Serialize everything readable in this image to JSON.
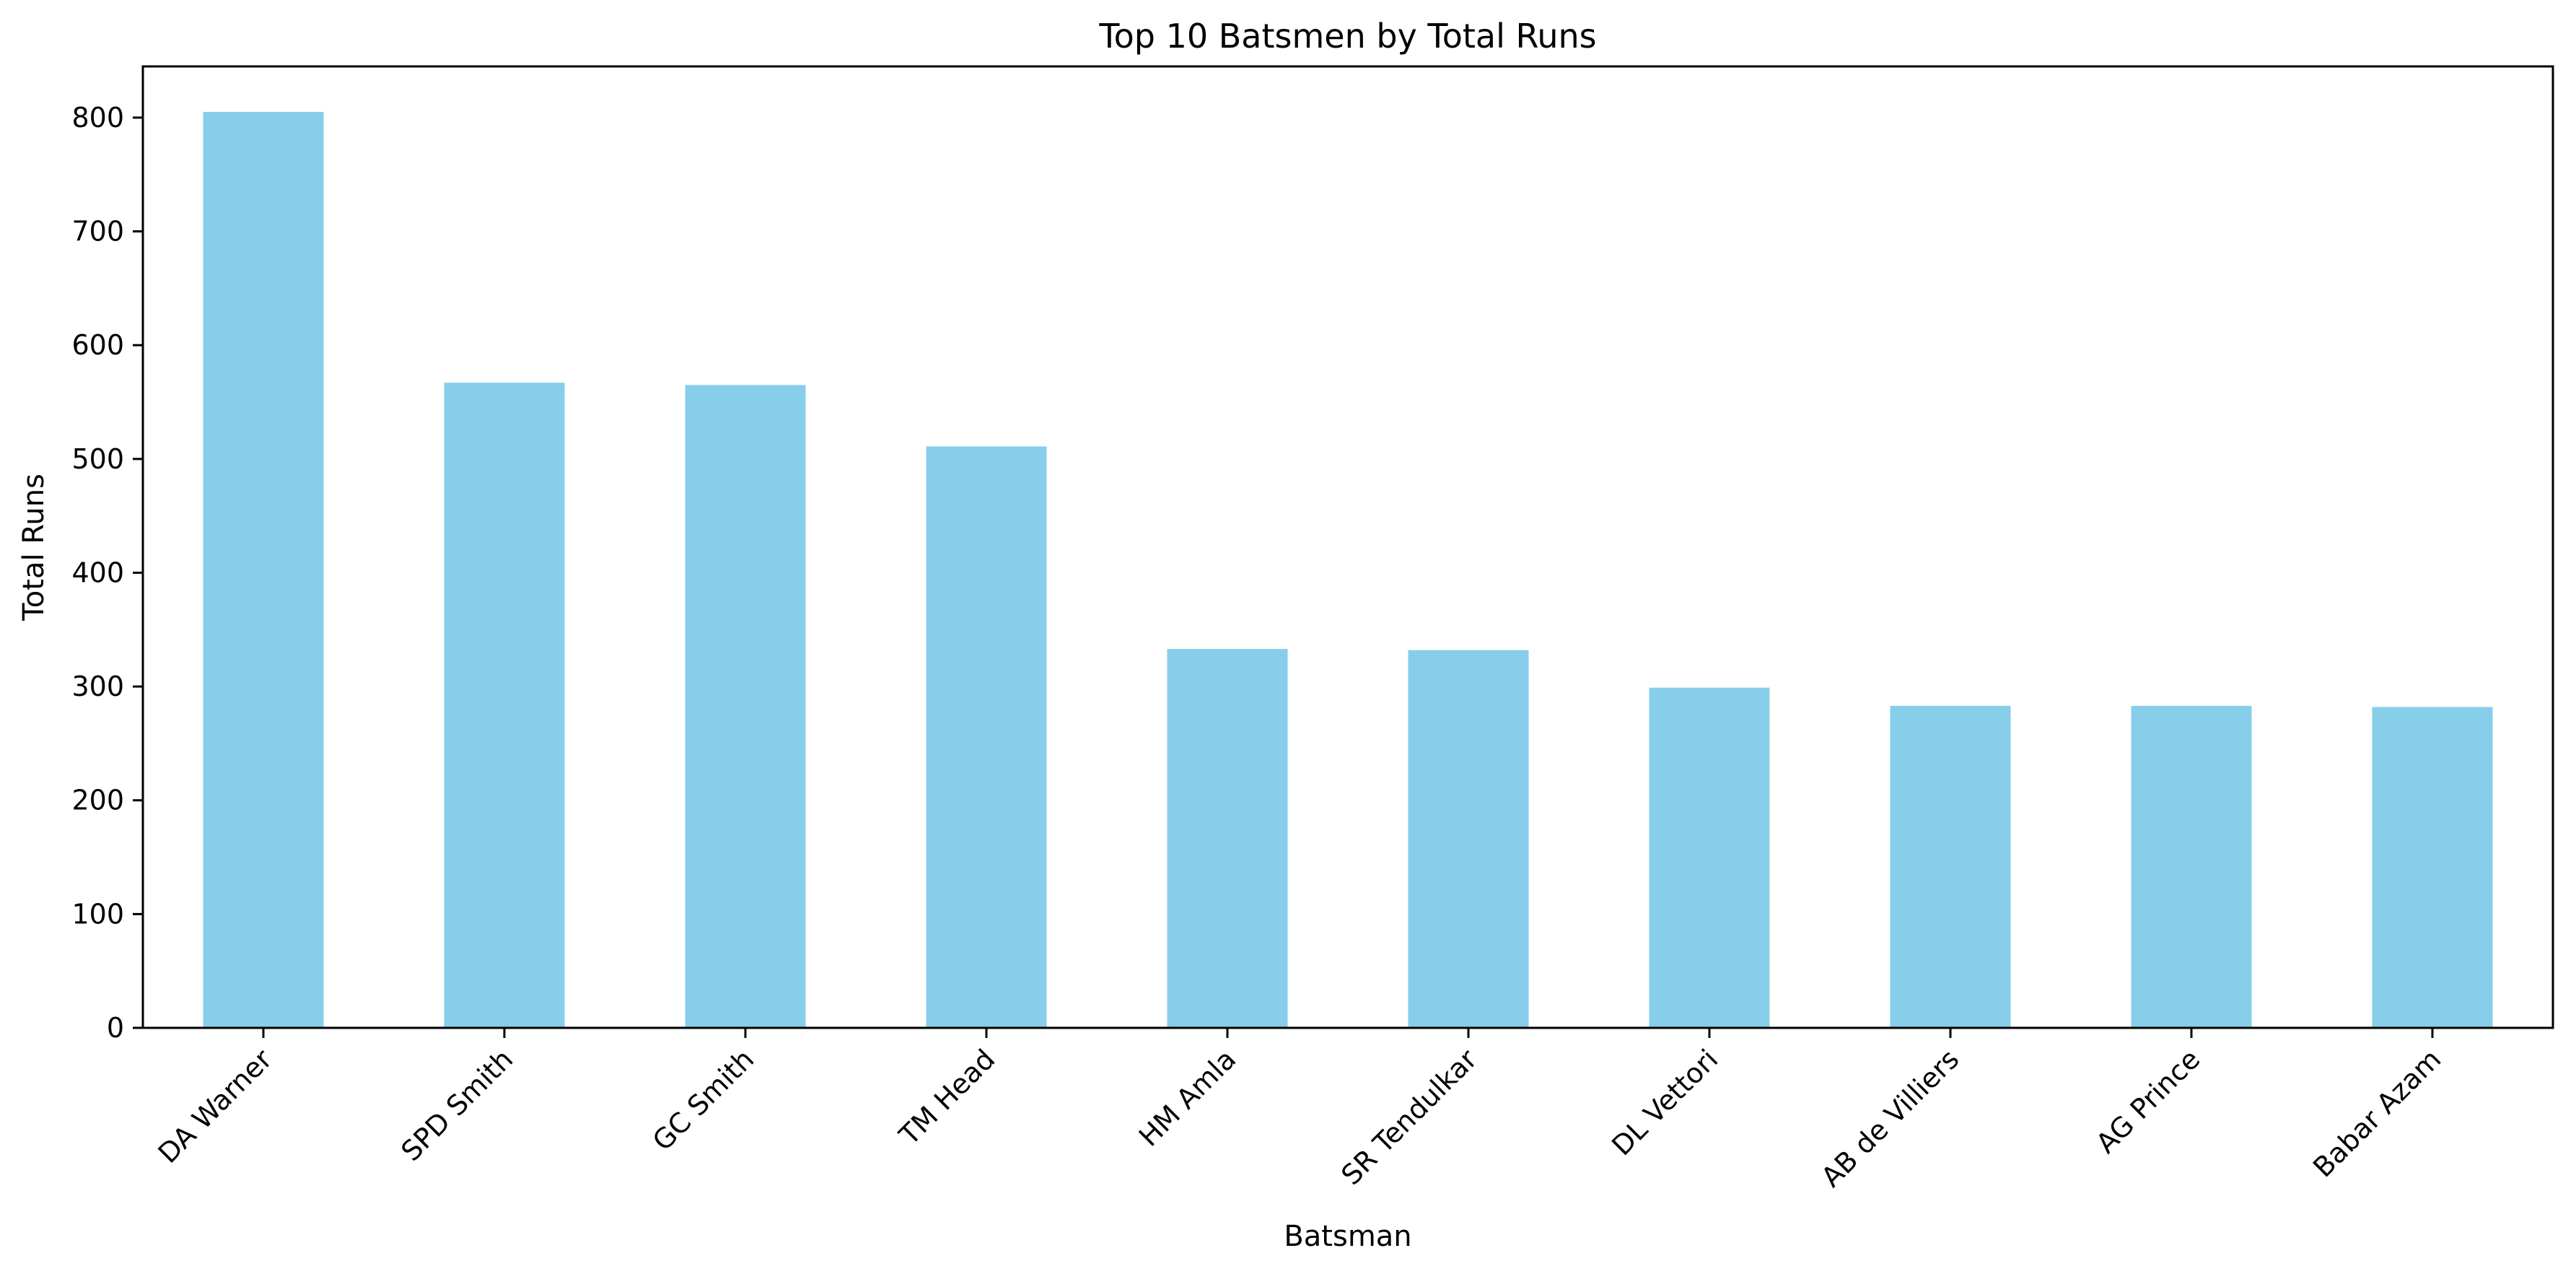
{
  "chart_data": {
    "type": "bar",
    "title": "Top 10 Batsmen by Total Runs",
    "xlabel": "Batsman",
    "ylabel": "Total Runs",
    "categories": [
      "DA Warner",
      "SPD Smith",
      "GC Smith",
      "TM Head",
      "HM Amla",
      "SR Tendulkar",
      "DL Vettori",
      "AB de Villiers",
      "AG Prince",
      "Babar Azam"
    ],
    "values": [
      805,
      567,
      565,
      511,
      333,
      332,
      299,
      283,
      283,
      282
    ],
    "ylim": [
      0,
      845
    ],
    "yticks": [
      0,
      100,
      200,
      300,
      400,
      500,
      600,
      700,
      800
    ],
    "bar_color": "#87ceeb",
    "grid": false,
    "legend": false
  }
}
